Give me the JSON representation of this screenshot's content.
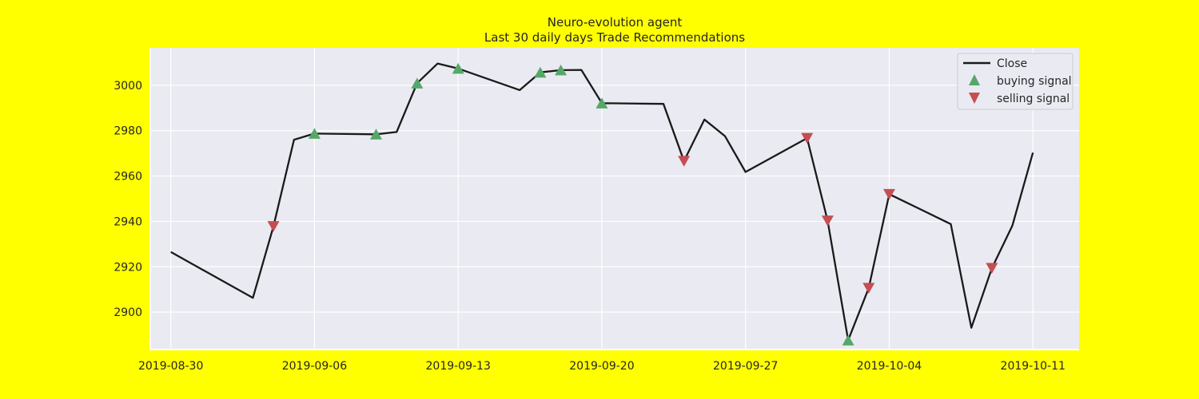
{
  "chart_data": {
    "type": "line",
    "title": "Neuro-evolution agent",
    "subtitle": "Last 30 daily days Trade Recommendations",
    "xlabel": "",
    "ylabel": "",
    "xlim": [
      "2019-08-29T00:00",
      "2019-10-13T06:00"
    ],
    "ylim": [
      2883.5,
      3016.5
    ],
    "grid": true,
    "legend_position": "top-right",
    "colors": {
      "background": "#ffff00",
      "plot_area": "#eaeaf2",
      "grid": "#ffffff",
      "line": "#1a1a1a",
      "buy": "#55a868",
      "sell": "#c44e52"
    },
    "x_ticks": [
      "2019-08-30",
      "2019-09-06",
      "2019-09-13",
      "2019-09-20",
      "2019-09-27",
      "2019-10-04",
      "2019-10-11"
    ],
    "y_ticks": [
      2900,
      2920,
      2940,
      2960,
      2980,
      3000
    ],
    "series": [
      {
        "name": "Close",
        "x": [
          "2019-08-30",
          "2019-09-03",
          "2019-09-04",
          "2019-09-05",
          "2019-09-06",
          "2019-09-09",
          "2019-09-10",
          "2019-09-11",
          "2019-09-12",
          "2019-09-13",
          "2019-09-16",
          "2019-09-17",
          "2019-09-18",
          "2019-09-19",
          "2019-09-20",
          "2019-09-23",
          "2019-09-24",
          "2019-09-25",
          "2019-09-26",
          "2019-09-27",
          "2019-09-30",
          "2019-10-01",
          "2019-10-02",
          "2019-10-03",
          "2019-10-04",
          "2019-10-07",
          "2019-10-08",
          "2019-10-09",
          "2019-10-10",
          "2019-10-11"
        ],
        "values": [
          2926.5,
          2906.3,
          2937.8,
          2976.0,
          2978.7,
          2978.4,
          2979.4,
          3000.9,
          3009.6,
          3007.4,
          2997.9,
          3005.7,
          3006.7,
          3006.8,
          2992.1,
          2991.8,
          2966.6,
          2984.9,
          2977.6,
          2961.8,
          2976.7,
          2940.3,
          2887.6,
          2910.6,
          2952.0,
          2938.8,
          2893.1,
          2919.4,
          2938.1,
          2970.3
        ]
      },
      {
        "name": "buying signal",
        "x": [
          "2019-09-06",
          "2019-09-09",
          "2019-09-11",
          "2019-09-13",
          "2019-09-17",
          "2019-09-18",
          "2019-09-20",
          "2019-10-02"
        ],
        "values": [
          2978.7,
          2978.4,
          3000.9,
          3007.4,
          3005.7,
          3006.7,
          2992.1,
          2887.6
        ]
      },
      {
        "name": "selling signal",
        "x": [
          "2019-09-04",
          "2019-09-24",
          "2019-09-30",
          "2019-10-01",
          "2019-10-03",
          "2019-10-04",
          "2019-10-09"
        ],
        "values": [
          2937.8,
          2966.6,
          2976.7,
          2940.3,
          2910.6,
          2952.0,
          2919.4
        ]
      }
    ]
  }
}
